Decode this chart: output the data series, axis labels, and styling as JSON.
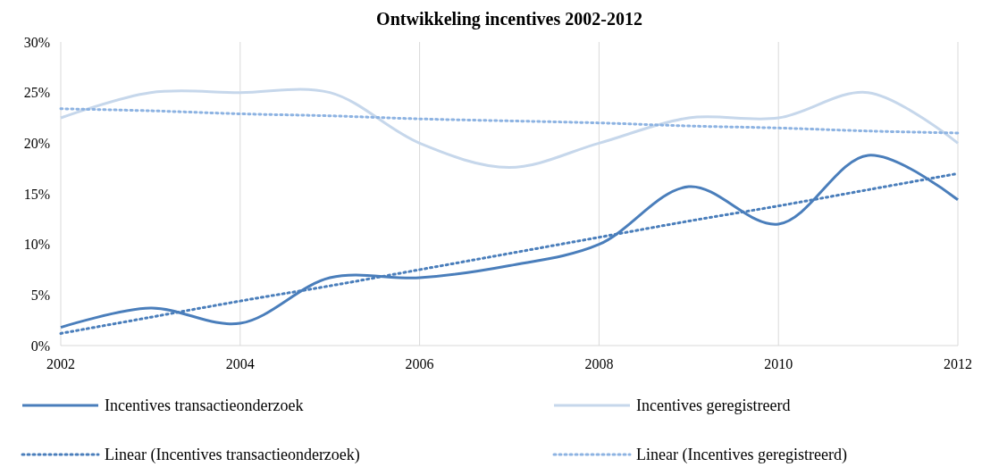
{
  "chart_data": {
    "type": "line",
    "title": "Ontwikkeling incentives 2002-2012",
    "x": [
      2002,
      2003,
      2004,
      2005,
      2006,
      2007,
      2008,
      2009,
      2010,
      2011,
      2012
    ],
    "series": [
      {
        "name": "Incentives transactieonderzoek",
        "color": "#4a7ebb",
        "values": [
          1.8,
          3.7,
          2.2,
          6.7,
          6.7,
          7.9,
          10,
          15.7,
          12,
          18.8,
          14.4
        ]
      },
      {
        "name": "Incentives geregistreerd",
        "color": "#c6d7eb",
        "values": [
          22.5,
          25,
          25,
          25,
          20,
          17.6,
          20,
          22.5,
          22.5,
          25,
          20
        ]
      },
      {
        "name": "Linear (Incentives transactieonderzoek)",
        "color": "#4a7ebb",
        "line_style": "dotted",
        "values": [
          1.2,
          2.8,
          4.4,
          5.9,
          7.5,
          9.1,
          10.7,
          12.3,
          13.8,
          15.4,
          17.0
        ]
      },
      {
        "name": "Linear (Incentives geregistreerd)",
        "color": "#8db3e2",
        "line_style": "dotted",
        "values": [
          23.4,
          23.2,
          22.9,
          22.7,
          22.4,
          22.2,
          22.0,
          21.7,
          21.5,
          21.2,
          21.0
        ]
      }
    ],
    "xlim": [
      2002,
      2012
    ],
    "xticks": [
      2002,
      2004,
      2006,
      2008,
      2010,
      2012
    ],
    "ylim": [
      0,
      30
    ],
    "yticks": [
      {
        "value": 0,
        "label": "0%"
      },
      {
        "value": 5,
        "label": "5%"
      },
      {
        "value": 10,
        "label": "10%"
      },
      {
        "value": 15,
        "label": "15%"
      },
      {
        "value": 20,
        "label": "20%"
      },
      {
        "value": 25,
        "label": "25%"
      },
      {
        "value": 30,
        "label": "30%"
      }
    ],
    "grid": "x",
    "legend": "bottom",
    "line_style": "solid"
  }
}
